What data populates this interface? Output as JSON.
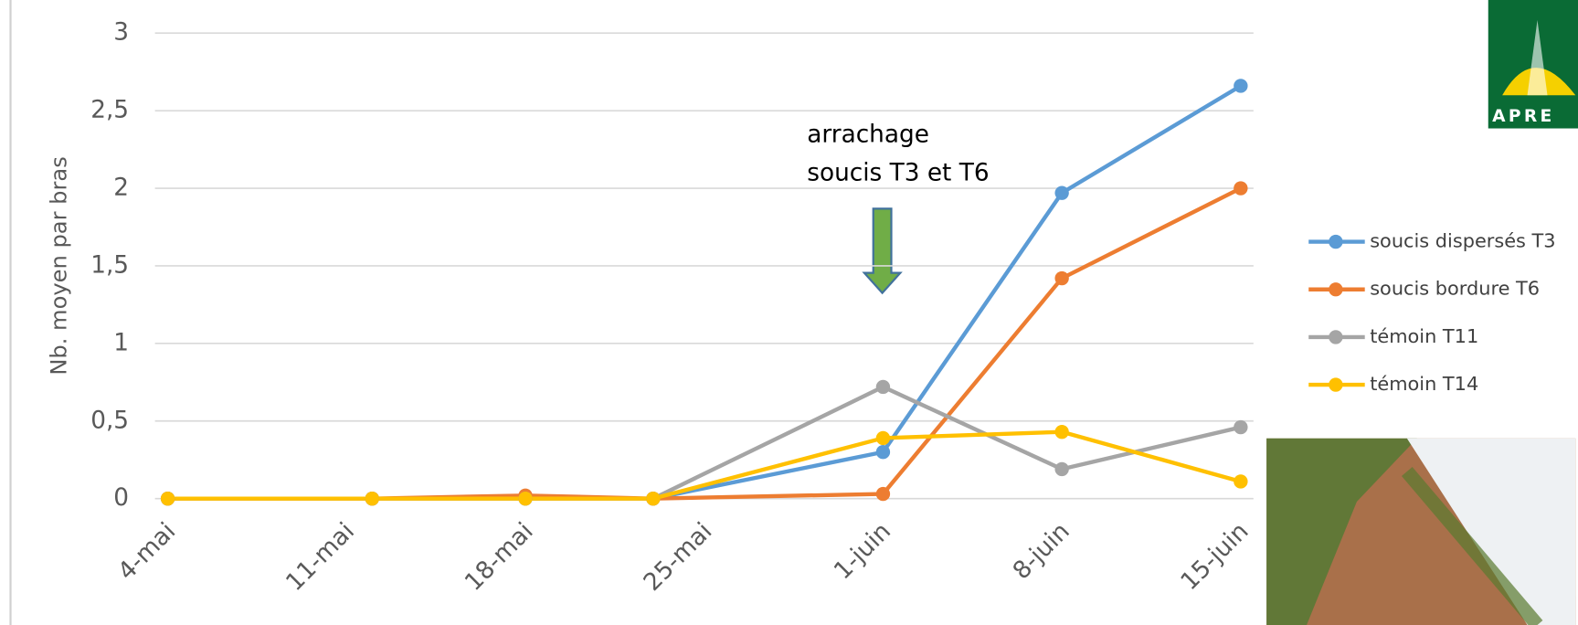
{
  "chart_data": {
    "type": "line",
    "y_label": "Nb. moyen par bras",
    "x": [
      4,
      12,
      18,
      23,
      32,
      39,
      46
    ],
    "xlim": [
      3.5,
      46.5
    ],
    "xticks": [
      {
        "value": 4,
        "label": "4-mai"
      },
      {
        "value": 11,
        "label": "11-mai"
      },
      {
        "value": 18,
        "label": "18-mai"
      },
      {
        "value": 25,
        "label": "25-mai"
      },
      {
        "value": 32,
        "label": "1-juin"
      },
      {
        "value": 39,
        "label": "8-juin"
      },
      {
        "value": 46,
        "label": "15-juin"
      }
    ],
    "ylim": [
      0,
      3
    ],
    "yticks": [
      0,
      {
        "value": 0.5,
        "label": "0,5"
      },
      1,
      {
        "value": 1.5,
        "label": "1,5"
      },
      2,
      {
        "value": 2.5,
        "label": "2,5"
      },
      3
    ],
    "grid": true,
    "series": [
      {
        "name": "soucis dispersés T3",
        "color": "#5b9bd5",
        "values": [
          0,
          0,
          0,
          0,
          0.3,
          1.97,
          2.66
        ]
      },
      {
        "name": "soucis bordure T6",
        "color": "#ed7d31",
        "values": [
          0,
          0,
          0.02,
          0,
          0.03,
          1.42,
          2.0
        ]
      },
      {
        "name": "témoin T11",
        "color": "#a5a5a5",
        "values": [
          0,
          0,
          0,
          0,
          0.72,
          0.19,
          0.46
        ]
      },
      {
        "name": "témoin T14",
        "color": "#ffc000",
        "values": [
          0,
          0,
          0,
          0,
          0.39,
          0.43,
          0.11
        ]
      }
    ],
    "annotation": [
      "arrachage",
      "soucis T3 et T6"
    ],
    "logo_text": "APRE"
  }
}
